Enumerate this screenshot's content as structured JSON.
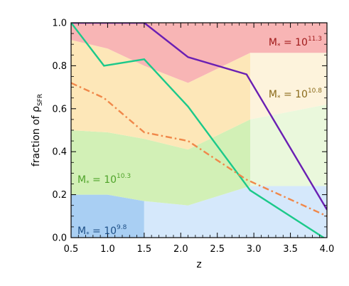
{
  "chart_data": {
    "type": "area",
    "xlabel": "z",
    "ylabel": "fraction of ρ",
    "ylabel_sub": "SFR",
    "xlim": [
      0.5,
      4.0
    ],
    "ylim": [
      0.0,
      1.0
    ],
    "xticks": [
      "0.5",
      "1.0",
      "1.5",
      "2.0",
      "2.5",
      "3.0",
      "3.5",
      "4.0"
    ],
    "yticks": [
      "0.0",
      "0.2",
      "0.4",
      "0.6",
      "0.8",
      "1.0"
    ],
    "grid": false,
    "bands": [
      {
        "name": "M* = 10^9.8",
        "label_prefix": "M",
        "label_sub": "*",
        "label_mid": " = 10",
        "label_sup": "9.8",
        "color_dark": "#a9cff3",
        "color_light": "#d5e8fb",
        "label_color": "#1d4f86",
        "bin_edges": [
          0.5,
          1.5,
          2.95,
          4.0
        ],
        "light_from_bin": 1,
        "lower": [
          0.0,
          0.0,
          0.0,
          0.0
        ],
        "upper": [
          0.2,
          0.2,
          0.17,
          0.23
        ],
        "upper_x": [
          0.5,
          1.5,
          2.1,
          2.95
        ],
        "upper_vals": [
          0.2,
          0.2,
          0.15,
          0.24
        ],
        "upper_end": 0.23
      },
      {
        "name": "M* = 10^10.3",
        "label_prefix": "M",
        "label_sub": "*",
        "label_mid": " = 10",
        "label_sup": "10.3",
        "color_dark": "#d2f0b6",
        "color_light": "#eaf8dc",
        "label_color": "#4fa32a",
        "label_x": 0.85,
        "label_y": 0.26
      },
      {
        "name": "M* = 10^10.8",
        "label_prefix": "M",
        "label_sub": "*",
        "label_mid": " = 10",
        "label_sup": "10.8",
        "color_dark": "#fde7b8",
        "color_light": "#fdf3dc",
        "label_color": "#8a6a1a"
      },
      {
        "name": "M* = 10^11.3",
        "label_prefix": "M",
        "label_sub": "*",
        "label_mid": " = 10",
        "label_sup": "11.3",
        "color_dark": "#f8b5b5",
        "color_light": "#f8b5b5",
        "label_color": "#a01a1a"
      }
    ],
    "boundaries": {
      "x": [
        0.5,
        1.0,
        1.5,
        2.1,
        2.95,
        4.0
      ],
      "b1": [
        0.2,
        0.2,
        0.17,
        0.15,
        0.24,
        0.24
      ],
      "b2": [
        0.5,
        0.49,
        0.46,
        0.41,
        0.55,
        0.62
      ],
      "b3": [
        0.92,
        0.88,
        0.8,
        0.72,
        0.86,
        0.86
      ],
      "top": [
        1.0,
        1.0,
        1.0,
        1.0,
        1.0,
        1.0
      ],
      "light_from_x": 2.95
    },
    "series": [
      {
        "style": "solid",
        "color": "#6a1fb3",
        "x": [
          0.5,
          1.5,
          2.1,
          2.9,
          4.0
        ],
        "y": [
          1.0,
          1.0,
          0.84,
          0.76,
          0.13
        ]
      },
      {
        "style": "solid",
        "color": "#1cc98a",
        "x": [
          0.5,
          0.95,
          1.5,
          2.1,
          2.95,
          4.0
        ],
        "y": [
          1.0,
          0.8,
          0.83,
          0.61,
          0.22,
          -0.01
        ]
      },
      {
        "style": "dashdot",
        "color": "#f0884a",
        "x": [
          0.5,
          0.95,
          1.5,
          2.1,
          2.9,
          4.0
        ],
        "y": [
          0.72,
          0.65,
          0.49,
          0.45,
          0.27,
          0.1
        ]
      }
    ]
  }
}
